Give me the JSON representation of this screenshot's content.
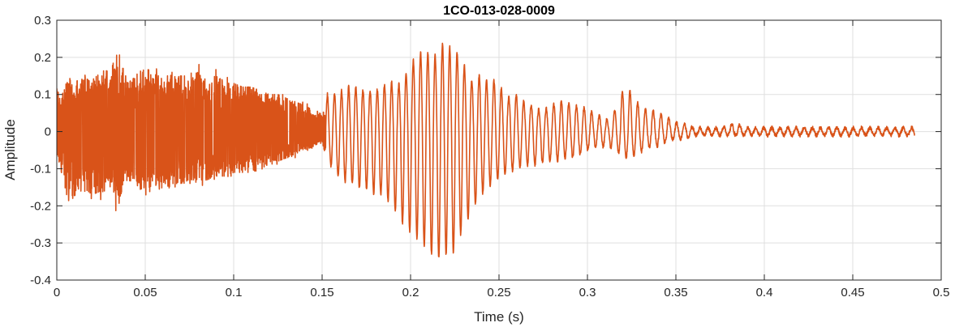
{
  "chart_data": {
    "type": "line",
    "title": "1CO-013-028-0009",
    "xlabel": "Time (s)",
    "ylabel": "Amplitude",
    "xlim": [
      0,
      0.5
    ],
    "ylim": [
      -0.4,
      0.3
    ],
    "grid": true,
    "x_ticks": [
      0,
      0.05,
      0.1,
      0.15,
      0.2,
      0.25,
      0.3,
      0.35,
      0.4,
      0.45,
      0.5
    ],
    "x_tick_labels": [
      "0",
      "0.05",
      "0.1",
      "0.15",
      "0.2",
      "0.25",
      "0.3",
      "0.35",
      "0.4",
      "0.45",
      "0.5"
    ],
    "y_ticks": [
      -0.4,
      -0.3,
      -0.2,
      -0.1,
      0,
      0.1,
      0.2,
      0.3
    ],
    "y_tick_labels": [
      "-0.4",
      "-0.3",
      "-0.2",
      "-0.1",
      "0",
      "0.1",
      "0.2",
      "0.3"
    ],
    "series": [
      {
        "color": "#D95319",
        "sample_rate_hz": 10000,
        "duration_s": 0.485,
        "description_points": {
          "t": [
            0.0,
            0.002,
            0.004,
            0.006,
            0.009,
            0.012,
            0.015,
            0.02,
            0.025,
            0.03,
            0.035,
            0.036,
            0.04,
            0.045,
            0.05,
            0.055,
            0.06,
            0.065,
            0.07,
            0.075,
            0.08,
            0.085,
            0.09,
            0.095,
            0.1,
            0.105,
            0.11,
            0.115,
            0.12,
            0.125,
            0.13,
            0.135,
            0.14,
            0.145,
            0.15,
            0.153,
            0.156,
            0.159,
            0.162,
            0.165,
            0.168,
            0.171,
            0.174,
            0.177,
            0.18,
            0.184,
            0.188,
            0.192,
            0.196,
            0.2,
            0.204,
            0.208,
            0.212,
            0.216,
            0.22,
            0.224,
            0.228,
            0.232,
            0.236,
            0.24,
            0.244,
            0.248,
            0.252,
            0.256,
            0.26,
            0.264,
            0.268,
            0.272,
            0.276,
            0.28,
            0.284,
            0.288,
            0.292,
            0.296,
            0.3,
            0.304,
            0.308,
            0.312,
            0.316,
            0.32,
            0.324,
            0.328,
            0.332,
            0.336,
            0.34,
            0.344,
            0.348,
            0.352,
            0.356,
            0.36,
            0.365,
            0.37,
            0.375,
            0.38,
            0.385,
            0.39,
            0.395,
            0.4,
            0.41,
            0.42,
            0.43,
            0.44,
            0.45,
            0.46,
            0.47,
            0.48,
            0.485
          ],
          "peak_pos": [
            0.13,
            0.08,
            0.12,
            0.16,
            0.12,
            0.14,
            0.15,
            0.13,
            0.17,
            0.16,
            0.22,
            0.19,
            0.13,
            0.15,
            0.17,
            0.16,
            0.14,
            0.16,
            0.15,
            0.15,
            0.16,
            0.14,
            0.15,
            0.13,
            0.13,
            0.12,
            0.12,
            0.11,
            0.1,
            0.1,
            0.09,
            0.08,
            0.07,
            0.06,
            0.05,
            0.1,
            0.1,
            0.11,
            0.11,
            0.12,
            0.12,
            0.12,
            0.11,
            0.11,
            0.11,
            0.12,
            0.14,
            0.12,
            0.14,
            0.18,
            0.21,
            0.22,
            0.2,
            0.21,
            0.26,
            0.2,
            0.22,
            0.15,
            0.13,
            0.16,
            0.13,
            0.14,
            0.11,
            0.09,
            0.1,
            0.08,
            0.07,
            0.06,
            0.06,
            0.07,
            0.08,
            0.08,
            0.07,
            0.07,
            0.06,
            0.05,
            0.04,
            0.03,
            0.06,
            0.11,
            0.11,
            0.08,
            0.06,
            0.06,
            0.05,
            0.04,
            0.03,
            0.02,
            0.02,
            0.01,
            0.01,
            0.01,
            0.01,
            0.02,
            0.02,
            0.01,
            0.01,
            0.01,
            0.01,
            0.01,
            0.01,
            0.01,
            0.01,
            0.01,
            0.01,
            0.01,
            0.01
          ],
          "peak_neg": [
            -0.05,
            -0.1,
            -0.13,
            -0.17,
            -0.18,
            -0.16,
            -0.15,
            -0.17,
            -0.16,
            -0.15,
            -0.21,
            -0.17,
            -0.14,
            -0.16,
            -0.15,
            -0.15,
            -0.14,
            -0.14,
            -0.14,
            -0.13,
            -0.13,
            -0.13,
            -0.12,
            -0.12,
            -0.11,
            -0.11,
            -0.11,
            -0.1,
            -0.09,
            -0.08,
            -0.07,
            -0.06,
            -0.05,
            -0.04,
            -0.03,
            -0.08,
            -0.1,
            -0.12,
            -0.13,
            -0.14,
            -0.14,
            -0.15,
            -0.15,
            -0.16,
            -0.17,
            -0.17,
            -0.19,
            -0.22,
            -0.25,
            -0.27,
            -0.29,
            -0.31,
            -0.33,
            -0.34,
            -0.33,
            -0.33,
            -0.28,
            -0.24,
            -0.2,
            -0.17,
            -0.15,
            -0.13,
            -0.12,
            -0.11,
            -0.1,
            -0.09,
            -0.09,
            -0.09,
            -0.08,
            -0.08,
            -0.08,
            -0.07,
            -0.07,
            -0.06,
            -0.05,
            -0.04,
            -0.04,
            -0.04,
            -0.05,
            -0.07,
            -0.07,
            -0.06,
            -0.05,
            -0.04,
            -0.04,
            -0.03,
            -0.02,
            -0.02,
            -0.02,
            -0.01,
            -0.01,
            -0.01,
            -0.01,
            -0.01,
            -0.01,
            -0.01,
            -0.01,
            -0.01,
            -0.01,
            -0.01,
            -0.01,
            -0.01,
            -0.01,
            -0.01,
            -0.01,
            -0.01,
            -0.01
          ]
        }
      }
    ]
  }
}
